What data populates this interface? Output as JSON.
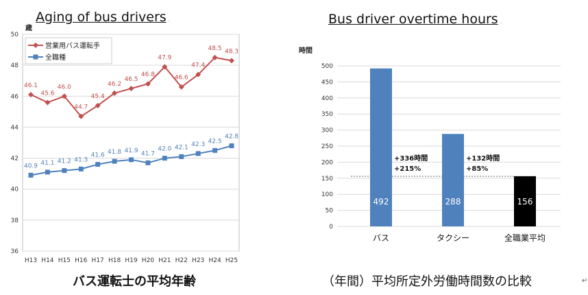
{
  "left": {
    "title": "Aging of bus drivers",
    "caption": "バス運転士の平均年齢"
  },
  "right": {
    "title": "Bus driver overtime hours",
    "caption": "（年間）平均所定外労働時間数の比較"
  },
  "chart_data": [
    {
      "type": "line",
      "title": "",
      "ylabel": "歳",
      "xlabel": "",
      "ylim": [
        36,
        50
      ],
      "yticks": [
        36,
        38,
        40,
        42,
        44,
        46,
        48,
        50
      ],
      "categories": [
        "H13",
        "H14",
        "H15",
        "H16",
        "H17",
        "H18",
        "H19",
        "H20",
        "H21",
        "H22",
        "H23",
        "H24",
        "H25"
      ],
      "grid": true,
      "legend_position": "top-left",
      "series": [
        {
          "name": "営業用バス運転手",
          "color": "#c0504d",
          "marker": "diamond",
          "values": [
            46.1,
            45.6,
            46.0,
            44.7,
            45.4,
            46.2,
            46.5,
            46.8,
            47.9,
            46.6,
            47.4,
            48.5,
            48.3
          ]
        },
        {
          "name": "全職種",
          "color": "#4f81bd",
          "marker": "square",
          "values": [
            40.9,
            41.1,
            41.2,
            41.3,
            41.6,
            41.8,
            41.9,
            41.7,
            42.0,
            42.1,
            42.3,
            42.5,
            42.8
          ]
        }
      ]
    },
    {
      "type": "bar",
      "title": "",
      "ylabel": "時間",
      "xlabel": "",
      "ylim": [
        0,
        500
      ],
      "yticks": [
        0,
        50,
        100,
        150,
        200,
        250,
        300,
        350,
        400,
        450,
        500
      ],
      "categories": [
        "バス",
        "タクシー",
        "全職業平均"
      ],
      "values": [
        492,
        288,
        156
      ],
      "colors": [
        "#4f81bd",
        "#4f81bd",
        "#000000"
      ],
      "reference_line": 156,
      "annotations": [
        {
          "category": "バス",
          "lines": [
            "+336時間",
            "+215%"
          ]
        },
        {
          "category": "タクシー",
          "lines": [
            "+132時間",
            "+85%"
          ]
        }
      ]
    }
  ]
}
